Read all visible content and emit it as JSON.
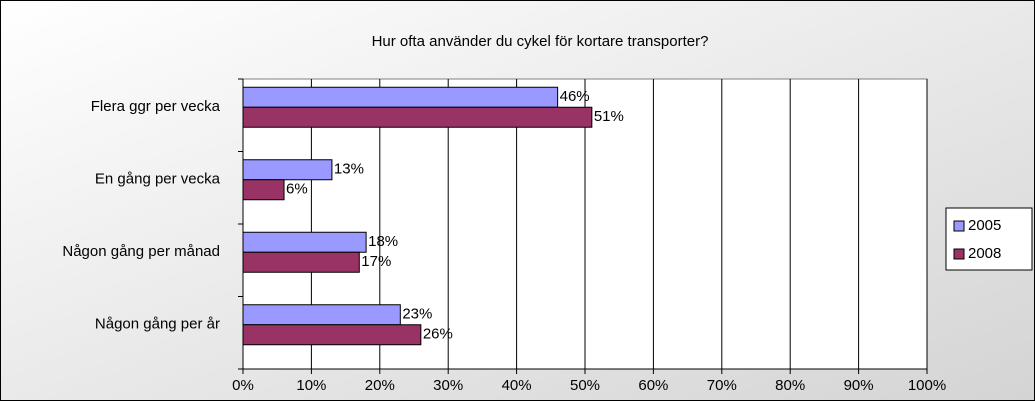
{
  "chart_data": {
    "type": "bar",
    "orientation": "horizontal",
    "title": "Hur ofta använder du cykel för kortare transporter?",
    "categories": [
      "Flera ggr per vecka",
      "En gång per vecka",
      "Någon gång per månad",
      "Någon gång per år"
    ],
    "series": [
      {
        "name": "2005",
        "color": "#9999ff",
        "values": [
          46,
          13,
          18,
          23
        ],
        "value_labels": [
          "46%",
          "13%",
          "18%",
          "23%"
        ]
      },
      {
        "name": "2008",
        "color": "#993366",
        "values": [
          51,
          6,
          17,
          26
        ],
        "value_labels": [
          "51%",
          "6%",
          "17%",
          "26%"
        ]
      }
    ],
    "xlim": [
      0,
      100
    ],
    "xticks": [
      {
        "value": 0,
        "label": "0%"
      },
      {
        "value": 10,
        "label": "10%"
      },
      {
        "value": 20,
        "label": "20%"
      },
      {
        "value": 30,
        "label": "30%"
      },
      {
        "value": 40,
        "label": "40%"
      },
      {
        "value": 50,
        "label": "50%"
      },
      {
        "value": 60,
        "label": "60%"
      },
      {
        "value": 70,
        "label": "70%"
      },
      {
        "value": 80,
        "label": "80%"
      },
      {
        "value": 90,
        "label": "90%"
      },
      {
        "value": 100,
        "label": "100%"
      }
    ],
    "grid": true,
    "legend": "right"
  }
}
